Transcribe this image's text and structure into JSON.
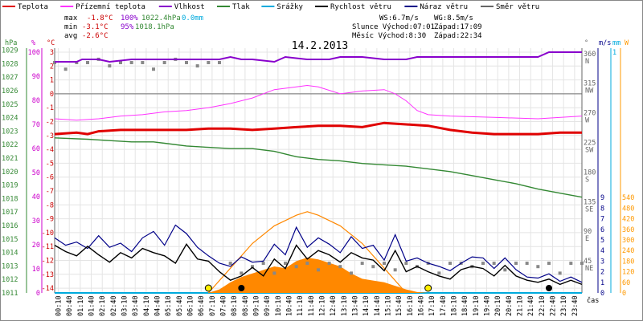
{
  "chart_data": {
    "type": "line",
    "title": "14.2.2013",
    "legend": [
      {
        "label": "Teplota",
        "color": "#e00000"
      },
      {
        "label": "Přízemní teplota",
        "color": "#ff33ff"
      },
      {
        "label": "Vlhkost",
        "color": "#8800cc"
      },
      {
        "label": "Tlak",
        "color": "#338833"
      },
      {
        "label": "Srážky",
        "color": "#00aadd"
      },
      {
        "label": "Rychlost větru",
        "color": "#000000"
      },
      {
        "label": "Náraz větru",
        "color": "#000088"
      },
      {
        "label": "Směr větru",
        "color": "#666666"
      }
    ],
    "stats": {
      "max": {
        "label": "max",
        "temp": "-1.8°C",
        "hum": "100%",
        "press": "1022.4hPa",
        "rain": "0.0mm"
      },
      "min": {
        "label": "min",
        "temp": "-3.1°C",
        "hum": "95%",
        "press": "1018.1hPa"
      },
      "avg": {
        "label": "avg",
        "temp": "-2.6°C"
      }
    },
    "info": {
      "ws": "WS:6.7m/s",
      "wg": "WG:8.5m/s",
      "sun": "Slunce Východ:07:01",
      "sunset": "Západ:17:09",
      "moon": "Měsíc  Východ:8:30",
      "moonset": "Západ:22:34"
    },
    "axes": {
      "hpa_unit": "hPa",
      "pct_unit": "%",
      "temp_unit": "°C",
      "hpa": [
        "1029",
        "1028",
        "1027",
        "1026",
        "1025",
        "1024",
        "1023",
        "1022",
        "1021",
        "1020",
        "1019",
        "1018",
        "1017",
        "1016",
        "1015",
        "1014",
        "1013",
        "1012",
        "1011"
      ],
      "pct": [
        "100",
        "90",
        "80",
        "70",
        "60",
        "50",
        "40",
        "30",
        "20",
        "10",
        "0"
      ],
      "temp": [
        "3",
        "2",
        "1",
        "0",
        "-1",
        "-2",
        "-3",
        "-4",
        "-5",
        "-6",
        "-7",
        "-8",
        "-9",
        "-10",
        "-11",
        "-12",
        "-13",
        "-14"
      ],
      "dir_unit": "°",
      "dir": [
        {
          "deg": "360",
          "lab": "N"
        },
        {
          "deg": "315",
          "lab": "NW"
        },
        {
          "deg": "270",
          "lab": "W"
        },
        {
          "deg": "225",
          "lab": "SW"
        },
        {
          "deg": "180",
          "lab": "S"
        },
        {
          "deg": "135",
          "lab": "SE"
        },
        {
          "deg": "90",
          "lab": "E"
        },
        {
          "deg": "45",
          "lab": "NE"
        }
      ],
      "ms_unit": "m/s",
      "mm_unit": "mm",
      "w_unit": "W",
      "ms": [
        "9",
        "8",
        "7",
        "6",
        "5",
        "4",
        "3",
        "2",
        "1",
        "0"
      ],
      "mm": "1",
      "w": [
        "540",
        "480",
        "420",
        "360",
        "300",
        "240",
        "180",
        "120",
        "60",
        "0"
      ],
      "time_unit": "čas",
      "time": [
        "00:10",
        "00:40",
        "01:10",
        "01:40",
        "02:10",
        "02:40",
        "03:10",
        "03:40",
        "04:10",
        "04:40",
        "05:10",
        "05:40",
        "06:10",
        "06:40",
        "07:10",
        "07:40",
        "08:10",
        "08:40",
        "09:10",
        "09:40",
        "10:10",
        "10:40",
        "11:10",
        "11:40",
        "12:10",
        "12:40",
        "13:10",
        "13:40",
        "14:10",
        "14:40",
        "15:10",
        "15:40",
        "16:10",
        "16:40",
        "17:10",
        "17:40",
        "18:10",
        "18:40",
        "19:10",
        "19:40",
        "20:10",
        "20:40",
        "21:10",
        "21:40",
        "22:10",
        "22:40",
        "23:10",
        "23:40"
      ]
    },
    "series": {
      "humidity_pct": [
        [
          0,
          96
        ],
        [
          2,
          96
        ],
        [
          2.5,
          97
        ],
        [
          4,
          97
        ],
        [
          5,
          96
        ],
        [
          7,
          97
        ],
        [
          10,
          97
        ],
        [
          13,
          97
        ],
        [
          15,
          97
        ],
        [
          16,
          98
        ],
        [
          17,
          97
        ],
        [
          18,
          97
        ],
        [
          20,
          96
        ],
        [
          21,
          98
        ],
        [
          23,
          97
        ],
        [
          25,
          97
        ],
        [
          26,
          98
        ],
        [
          28,
          98
        ],
        [
          30,
          97
        ],
        [
          32,
          97
        ],
        [
          33,
          98
        ],
        [
          36,
          98
        ],
        [
          44,
          98
        ],
        [
          45,
          100
        ],
        [
          48,
          100
        ]
      ],
      "temperature_c": [
        [
          0,
          -2.9
        ],
        [
          2,
          -2.8
        ],
        [
          3,
          -2.9
        ],
        [
          4,
          -2.7
        ],
        [
          6,
          -2.6
        ],
        [
          8,
          -2.6
        ],
        [
          10,
          -2.6
        ],
        [
          12,
          -2.6
        ],
        [
          14,
          -2.5
        ],
        [
          16,
          -2.5
        ],
        [
          18,
          -2.6
        ],
        [
          20,
          -2.5
        ],
        [
          22,
          -2.4
        ],
        [
          24,
          -2.3
        ],
        [
          26,
          -2.3
        ],
        [
          28,
          -2.4
        ],
        [
          30,
          -2.1
        ],
        [
          32,
          -2.2
        ],
        [
          34,
          -2.3
        ],
        [
          36,
          -2.6
        ],
        [
          38,
          -2.8
        ],
        [
          40,
          -2.9
        ],
        [
          44,
          -2.9
        ],
        [
          46,
          -2.8
        ],
        [
          48,
          -2.8
        ]
      ],
      "ground_temp_c": [
        [
          0,
          -1.8
        ],
        [
          2,
          -1.9
        ],
        [
          4,
          -1.8
        ],
        [
          6,
          -1.6
        ],
        [
          8,
          -1.5
        ],
        [
          10,
          -1.3
        ],
        [
          12,
          -1.2
        ],
        [
          14,
          -1.0
        ],
        [
          16,
          -0.7
        ],
        [
          18,
          -0.3
        ],
        [
          20,
          0.3
        ],
        [
          22,
          0.5
        ],
        [
          23,
          0.6
        ],
        [
          24,
          0.5
        ],
        [
          26,
          0.0
        ],
        [
          28,
          0.2
        ],
        [
          30,
          0.3
        ],
        [
          31,
          0.0
        ],
        [
          32,
          -0.5
        ],
        [
          33,
          -1.2
        ],
        [
          34,
          -1.5
        ],
        [
          36,
          -1.6
        ],
        [
          40,
          -1.7
        ],
        [
          44,
          -1.8
        ],
        [
          48,
          -1.6
        ]
      ],
      "pressure_hpa": [
        [
          0,
          1022.5
        ],
        [
          3,
          1022.4
        ],
        [
          5,
          1022.3
        ],
        [
          7,
          1022.2
        ],
        [
          9,
          1022.2
        ],
        [
          10,
          1022.1
        ],
        [
          12,
          1021.9
        ],
        [
          14,
          1021.8
        ],
        [
          16,
          1021.7
        ],
        [
          18,
          1021.7
        ],
        [
          20,
          1021.5
        ],
        [
          22,
          1021.1
        ],
        [
          24,
          1020.9
        ],
        [
          26,
          1020.8
        ],
        [
          28,
          1020.6
        ],
        [
          30,
          1020.5
        ],
        [
          32,
          1020.4
        ],
        [
          34,
          1020.2
        ],
        [
          36,
          1020.0
        ],
        [
          38,
          1019.7
        ],
        [
          40,
          1019.4
        ],
        [
          42,
          1019.1
        ],
        [
          44,
          1018.7
        ],
        [
          46,
          1018.4
        ],
        [
          48,
          1018.1
        ]
      ],
      "wind_speed_ms": [
        [
          0,
          4.5
        ],
        [
          1,
          3.9
        ],
        [
          2,
          3.5
        ],
        [
          3,
          4.4
        ],
        [
          4,
          3.6
        ],
        [
          5,
          2.9
        ],
        [
          6,
          3.8
        ],
        [
          7,
          3.3
        ],
        [
          8,
          4.2
        ],
        [
          9,
          3.8
        ],
        [
          10,
          3.5
        ],
        [
          11,
          2.8
        ],
        [
          12,
          4.6
        ],
        [
          13,
          3.2
        ],
        [
          14,
          3.0
        ],
        [
          15,
          2.0
        ],
        [
          16,
          1.2
        ],
        [
          17,
          1.6
        ],
        [
          18,
          2.4
        ],
        [
          19,
          1.6
        ],
        [
          20,
          3.2
        ],
        [
          21,
          2.3
        ],
        [
          22,
          4.5
        ],
        [
          23,
          3.2
        ],
        [
          24,
          4.0
        ],
        [
          25,
          3.6
        ],
        [
          26,
          2.9
        ],
        [
          27,
          3.8
        ],
        [
          28,
          3.3
        ],
        [
          29,
          3.1
        ],
        [
          30,
          2.1
        ],
        [
          31,
          4.0
        ],
        [
          32,
          2.0
        ],
        [
          33,
          2.5
        ],
        [
          34,
          2.0
        ],
        [
          35,
          1.6
        ],
        [
          36,
          1.3
        ],
        [
          37,
          2.2
        ],
        [
          38,
          2.5
        ],
        [
          39,
          2.3
        ],
        [
          40,
          1.6
        ],
        [
          41,
          2.6
        ],
        [
          42,
          1.6
        ],
        [
          43,
          1.2
        ],
        [
          44,
          1.0
        ],
        [
          45,
          1.3
        ],
        [
          46,
          0.8
        ],
        [
          47,
          1.2
        ],
        [
          48,
          0.8
        ]
      ],
      "wind_gust_ms": [
        [
          0,
          5.2
        ],
        [
          1,
          4.5
        ],
        [
          2,
          4.8
        ],
        [
          3,
          4.2
        ],
        [
          4,
          5.4
        ],
        [
          5,
          4.3
        ],
        [
          6,
          4.7
        ],
        [
          7,
          3.9
        ],
        [
          8,
          5.2
        ],
        [
          9,
          5.8
        ],
        [
          10,
          4.5
        ],
        [
          11,
          6.4
        ],
        [
          12,
          5.6
        ],
        [
          13,
          4.3
        ],
        [
          14,
          3.5
        ],
        [
          15,
          2.8
        ],
        [
          16,
          2.5
        ],
        [
          17,
          3.4
        ],
        [
          18,
          2.9
        ],
        [
          19,
          3.0
        ],
        [
          20,
          4.6
        ],
        [
          21,
          3.6
        ],
        [
          22,
          6.2
        ],
        [
          23,
          4.3
        ],
        [
          24,
          5.2
        ],
        [
          25,
          4.6
        ],
        [
          26,
          3.8
        ],
        [
          27,
          5.3
        ],
        [
          28,
          4.2
        ],
        [
          29,
          4.5
        ],
        [
          30,
          3.1
        ],
        [
          31,
          5.5
        ],
        [
          32,
          3.0
        ],
        [
          33,
          3.3
        ],
        [
          34,
          2.8
        ],
        [
          35,
          2.5
        ],
        [
          36,
          2.1
        ],
        [
          37,
          2.8
        ],
        [
          38,
          3.4
        ],
        [
          39,
          3.3
        ],
        [
          40,
          2.3
        ],
        [
          41,
          3.3
        ],
        [
          42,
          2.2
        ],
        [
          43,
          1.5
        ],
        [
          44,
          1.4
        ],
        [
          45,
          1.8
        ],
        [
          46,
          1.1
        ],
        [
          47,
          1.5
        ],
        [
          48,
          1.0
        ]
      ],
      "wind_dir_deg": [
        [
          0,
          350
        ],
        [
          1,
          340
        ],
        [
          2,
          350
        ],
        [
          3,
          350
        ],
        [
          4,
          355
        ],
        [
          5,
          345
        ],
        [
          6,
          350
        ],
        [
          7,
          350
        ],
        [
          8,
          350
        ],
        [
          9,
          340
        ],
        [
          10,
          350
        ],
        [
          11,
          355
        ],
        [
          12,
          350
        ],
        [
          13,
          345
        ],
        [
          14,
          350
        ],
        [
          15,
          350
        ],
        [
          16,
          45
        ],
        [
          17,
          30
        ],
        [
          18,
          40
        ],
        [
          19,
          45
        ],
        [
          20,
          30
        ],
        [
          21,
          45
        ],
        [
          22,
          40
        ],
        [
          23,
          45
        ],
        [
          24,
          35
        ],
        [
          25,
          45
        ],
        [
          26,
          40
        ],
        [
          27,
          30
        ],
        [
          28,
          45
        ],
        [
          29,
          40
        ],
        [
          30,
          45
        ],
        [
          31,
          35
        ],
        [
          32,
          45
        ],
        [
          33,
          40
        ],
        [
          34,
          45
        ],
        [
          35,
          30
        ],
        [
          36,
          45
        ],
        [
          37,
          45
        ],
        [
          38,
          40
        ],
        [
          39,
          45
        ],
        [
          40,
          45
        ],
        [
          41,
          35
        ],
        [
          42,
          45
        ],
        [
          43,
          45
        ],
        [
          44,
          40
        ],
        [
          45,
          45
        ],
        [
          46,
          30
        ],
        [
          47,
          45
        ],
        [
          48,
          45
        ]
      ],
      "solar_w": [
        [
          14,
          0
        ],
        [
          15,
          20
        ],
        [
          16,
          60
        ],
        [
          17,
          90
        ],
        [
          18,
          110
        ],
        [
          19,
          130
        ],
        [
          20,
          150
        ],
        [
          21,
          140
        ],
        [
          22,
          180
        ],
        [
          23,
          200
        ],
        [
          24,
          190
        ],
        [
          25,
          170
        ],
        [
          26,
          150
        ],
        [
          27,
          110
        ],
        [
          28,
          80
        ],
        [
          29,
          70
        ],
        [
          30,
          60
        ],
        [
          31,
          40
        ],
        [
          32,
          20
        ],
        [
          33,
          5
        ],
        [
          34,
          0
        ]
      ],
      "solar_max_w": [
        [
          14,
          0
        ],
        [
          16,
          140
        ],
        [
          18,
          280
        ],
        [
          20,
          380
        ],
        [
          22,
          440
        ],
        [
          23,
          460
        ],
        [
          24,
          440
        ],
        [
          26,
          380
        ],
        [
          28,
          280
        ],
        [
          30,
          140
        ],
        [
          32,
          0
        ]
      ]
    }
  }
}
